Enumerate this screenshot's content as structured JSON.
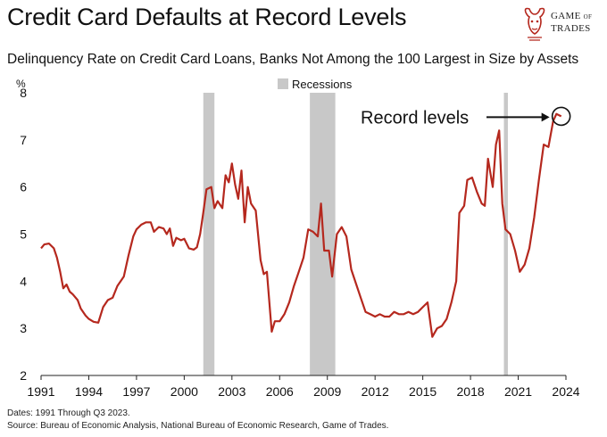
{
  "header": {
    "title": "Credit Card Defaults at Record Levels",
    "subtitle": "Delinquency Rate on Credit Card Loans, Banks Not Among the 100 Largest in Size by Assets"
  },
  "brand": {
    "line1": "GAME",
    "line1_of": "OF",
    "line2": "TRADES",
    "icon": "bull-icon"
  },
  "footnotes": {
    "dates": "Dates: 1991 Through Q3 2023.",
    "source": "Source: Bureau of Economic Analysis, National Bureau of Economic Research, Game of Trades."
  },
  "chart_data": {
    "type": "line",
    "title": "",
    "xlabel": "",
    "ylabel": "%",
    "xlim": [
      1991,
      2024
    ],
    "ylim": [
      2,
      8
    ],
    "x_ticks": [
      1991,
      1994,
      1997,
      2000,
      2003,
      2006,
      2009,
      2012,
      2015,
      2018,
      2021,
      2024
    ],
    "y_ticks": [
      2,
      3,
      4,
      5,
      6,
      7,
      8
    ],
    "grid": false,
    "legend": {
      "position": "top-center",
      "entries": [
        "Recessions"
      ]
    },
    "recessions": [
      {
        "start": 2001.2,
        "end": 2001.9
      },
      {
        "start": 2007.9,
        "end": 2009.5
      },
      {
        "start": 2020.1,
        "end": 2020.35
      }
    ],
    "annotation": {
      "text": "Record levels",
      "x": 2023.7,
      "y": 7.5
    },
    "colors": {
      "line": "#b5281e",
      "recession": "#c8c8c8"
    },
    "series": [
      {
        "name": "",
        "points": [
          [
            1991.0,
            4.7
          ],
          [
            1991.2,
            4.78
          ],
          [
            1991.5,
            4.8
          ],
          [
            1991.8,
            4.7
          ],
          [
            1992.0,
            4.5
          ],
          [
            1992.2,
            4.2
          ],
          [
            1992.4,
            3.85
          ],
          [
            1992.6,
            3.93
          ],
          [
            1992.8,
            3.78
          ],
          [
            1993.0,
            3.72
          ],
          [
            1993.3,
            3.6
          ],
          [
            1993.5,
            3.42
          ],
          [
            1993.8,
            3.27
          ],
          [
            1994.0,
            3.2
          ],
          [
            1994.3,
            3.14
          ],
          [
            1994.6,
            3.12
          ],
          [
            1994.9,
            3.45
          ],
          [
            1995.2,
            3.6
          ],
          [
            1995.5,
            3.65
          ],
          [
            1995.8,
            3.9
          ],
          [
            1996.2,
            4.1
          ],
          [
            1996.5,
            4.55
          ],
          [
            1996.8,
            4.95
          ],
          [
            1997.0,
            5.1
          ],
          [
            1997.3,
            5.2
          ],
          [
            1997.6,
            5.25
          ],
          [
            1997.9,
            5.25
          ],
          [
            1998.1,
            5.05
          ],
          [
            1998.4,
            5.15
          ],
          [
            1998.7,
            5.12
          ],
          [
            1998.9,
            5.0
          ],
          [
            1999.1,
            5.12
          ],
          [
            1999.3,
            4.75
          ],
          [
            1999.5,
            4.92
          ],
          [
            1999.8,
            4.87
          ],
          [
            2000.0,
            4.9
          ],
          [
            2000.3,
            4.7
          ],
          [
            2000.6,
            4.67
          ],
          [
            2000.8,
            4.72
          ],
          [
            2001.0,
            5.0
          ],
          [
            2001.2,
            5.45
          ],
          [
            2001.4,
            5.95
          ],
          [
            2001.7,
            6.0
          ],
          [
            2001.9,
            5.55
          ],
          [
            2002.1,
            5.7
          ],
          [
            2002.4,
            5.55
          ],
          [
            2002.6,
            6.25
          ],
          [
            2002.8,
            6.1
          ],
          [
            2003.0,
            6.5
          ],
          [
            2003.2,
            6.05
          ],
          [
            2003.4,
            5.75
          ],
          [
            2003.6,
            6.35
          ],
          [
            2003.8,
            5.25
          ],
          [
            2004.0,
            6.0
          ],
          [
            2004.2,
            5.65
          ],
          [
            2004.5,
            5.5
          ],
          [
            2004.8,
            4.45
          ],
          [
            2005.0,
            4.15
          ],
          [
            2005.2,
            4.2
          ],
          [
            2005.5,
            2.93
          ],
          [
            2005.7,
            3.15
          ],
          [
            2006.0,
            3.15
          ],
          [
            2006.3,
            3.3
          ],
          [
            2006.6,
            3.55
          ],
          [
            2006.9,
            3.9
          ],
          [
            2007.2,
            4.2
          ],
          [
            2007.5,
            4.5
          ],
          [
            2007.8,
            5.1
          ],
          [
            2008.1,
            5.05
          ],
          [
            2008.4,
            4.95
          ],
          [
            2008.6,
            5.65
          ],
          [
            2008.8,
            4.65
          ],
          [
            2009.1,
            4.65
          ],
          [
            2009.3,
            4.1
          ],
          [
            2009.6,
            5.0
          ],
          [
            2009.9,
            5.15
          ],
          [
            2010.2,
            4.95
          ],
          [
            2010.5,
            4.25
          ],
          [
            2010.8,
            3.95
          ],
          [
            2011.1,
            3.65
          ],
          [
            2011.4,
            3.35
          ],
          [
            2011.7,
            3.3
          ],
          [
            2012.0,
            3.25
          ],
          [
            2012.3,
            3.3
          ],
          [
            2012.6,
            3.25
          ],
          [
            2012.9,
            3.25
          ],
          [
            2013.2,
            3.35
          ],
          [
            2013.5,
            3.3
          ],
          [
            2013.8,
            3.3
          ],
          [
            2014.1,
            3.35
          ],
          [
            2014.4,
            3.3
          ],
          [
            2014.7,
            3.35
          ],
          [
            2015.0,
            3.45
          ],
          [
            2015.3,
            3.55
          ],
          [
            2015.6,
            2.82
          ],
          [
            2015.9,
            3.0
          ],
          [
            2016.2,
            3.05
          ],
          [
            2016.5,
            3.2
          ],
          [
            2016.8,
            3.55
          ],
          [
            2017.1,
            4.0
          ],
          [
            2017.3,
            5.45
          ],
          [
            2017.6,
            5.6
          ],
          [
            2017.8,
            6.15
          ],
          [
            2018.1,
            6.2
          ],
          [
            2018.4,
            5.9
          ],
          [
            2018.7,
            5.65
          ],
          [
            2018.9,
            5.6
          ],
          [
            2019.1,
            6.6
          ],
          [
            2019.4,
            6.0
          ],
          [
            2019.6,
            6.9
          ],
          [
            2019.8,
            7.2
          ],
          [
            2020.0,
            5.65
          ],
          [
            2020.2,
            5.1
          ],
          [
            2020.5,
            5.0
          ],
          [
            2020.8,
            4.65
          ],
          [
            2021.1,
            4.2
          ],
          [
            2021.4,
            4.35
          ],
          [
            2021.7,
            4.7
          ],
          [
            2022.0,
            5.35
          ],
          [
            2022.3,
            6.15
          ],
          [
            2022.6,
            6.9
          ],
          [
            2022.9,
            6.85
          ],
          [
            2023.2,
            7.4
          ],
          [
            2023.4,
            7.55
          ],
          [
            2023.7,
            7.5
          ]
        ]
      }
    ]
  }
}
